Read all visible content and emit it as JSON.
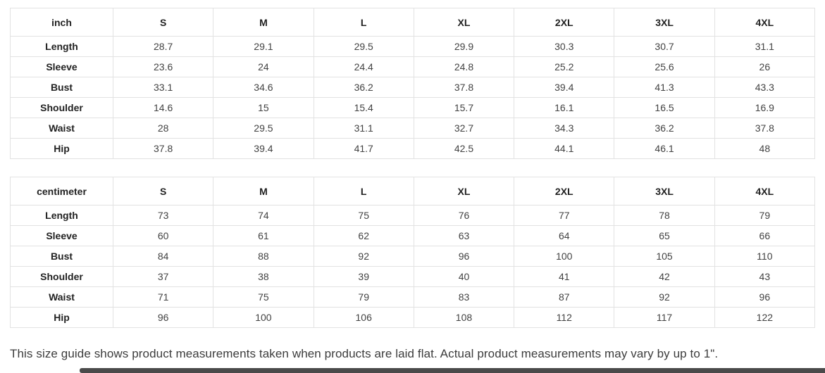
{
  "tables": [
    {
      "unit_label": "inch",
      "sizes": [
        "S",
        "M",
        "L",
        "XL",
        "2XL",
        "3XL",
        "4XL"
      ],
      "rows": [
        {
          "label": "Length",
          "values": [
            "28.7",
            "29.1",
            "29.5",
            "29.9",
            "30.3",
            "30.7",
            "31.1"
          ]
        },
        {
          "label": "Sleeve",
          "values": [
            "23.6",
            "24",
            "24.4",
            "24.8",
            "25.2",
            "25.6",
            "26"
          ]
        },
        {
          "label": "Bust",
          "values": [
            "33.1",
            "34.6",
            "36.2",
            "37.8",
            "39.4",
            "41.3",
            "43.3"
          ]
        },
        {
          "label": "Shoulder",
          "values": [
            "14.6",
            "15",
            "15.4",
            "15.7",
            "16.1",
            "16.5",
            "16.9"
          ]
        },
        {
          "label": "Waist",
          "values": [
            "28",
            "29.5",
            "31.1",
            "32.7",
            "34.3",
            "36.2",
            "37.8"
          ]
        },
        {
          "label": "Hip",
          "values": [
            "37.8",
            "39.4",
            "41.7",
            "42.5",
            "44.1",
            "46.1",
            "48"
          ]
        }
      ]
    },
    {
      "unit_label": "centimeter",
      "sizes": [
        "S",
        "M",
        "L",
        "XL",
        "2XL",
        "3XL",
        "4XL"
      ],
      "rows": [
        {
          "label": "Length",
          "values": [
            "73",
            "74",
            "75",
            "76",
            "77",
            "78",
            "79"
          ]
        },
        {
          "label": "Sleeve",
          "values": [
            "60",
            "61",
            "62",
            "63",
            "64",
            "65",
            "66"
          ]
        },
        {
          "label": "Bust",
          "values": [
            "84",
            "88",
            "92",
            "96",
            "100",
            "105",
            "110"
          ]
        },
        {
          "label": "Shoulder",
          "values": [
            "37",
            "38",
            "39",
            "40",
            "41",
            "42",
            "43"
          ]
        },
        {
          "label": "Waist",
          "values": [
            "71",
            "75",
            "79",
            "83",
            "87",
            "92",
            "96"
          ]
        },
        {
          "label": "Hip",
          "values": [
            "96",
            "100",
            "106",
            "108",
            "112",
            "117",
            "122"
          ]
        }
      ]
    }
  ],
  "footer": {
    "note": "This size guide shows product measurements taken when products are laid flat. Actual product measurements may vary by up to 1\"."
  },
  "colors": {
    "background": "#ffffff",
    "table_border": "#e2e2e2",
    "header_text": "#222222",
    "cell_text": "#424242",
    "note_text": "#3c3c3c",
    "scrollbar_thumb": "#4a4a4a"
  }
}
